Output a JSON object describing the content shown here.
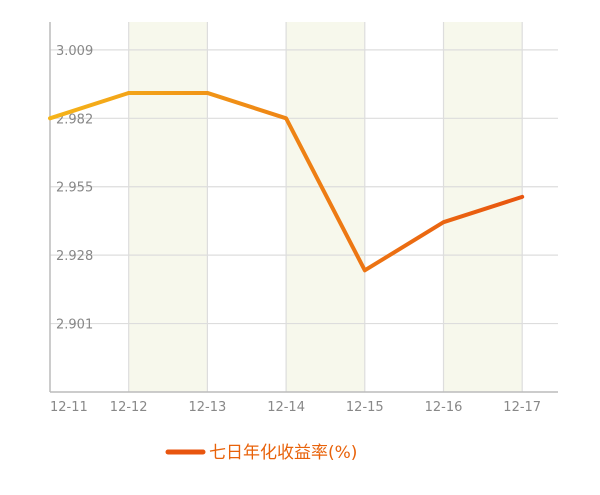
{
  "chart_data": {
    "type": "line",
    "title": "",
    "xlabel": "",
    "ylabel": "",
    "categories": [
      "12-11",
      "12-12",
      "12-13",
      "12-14",
      "12-15",
      "12-16",
      "12-17"
    ],
    "series": [
      {
        "name": "七日年化收益率(%)",
        "values": [
          2.982,
          2.992,
          2.992,
          2.982,
          2.922,
          2.941,
          2.951
        ]
      }
    ],
    "y_ticks": [
      "3.009",
      "2.982",
      "2.955",
      "2.928",
      "2.901"
    ],
    "ylim": [
      2.874,
      3.02
    ],
    "grid": true,
    "legend_position": "bottom-center",
    "colors": {
      "line_start": "#f5b41a",
      "line_end": "#e8550f",
      "grid": "#dddddd",
      "axis": "#bbbbbb",
      "band": "#f7f8ec"
    }
  }
}
